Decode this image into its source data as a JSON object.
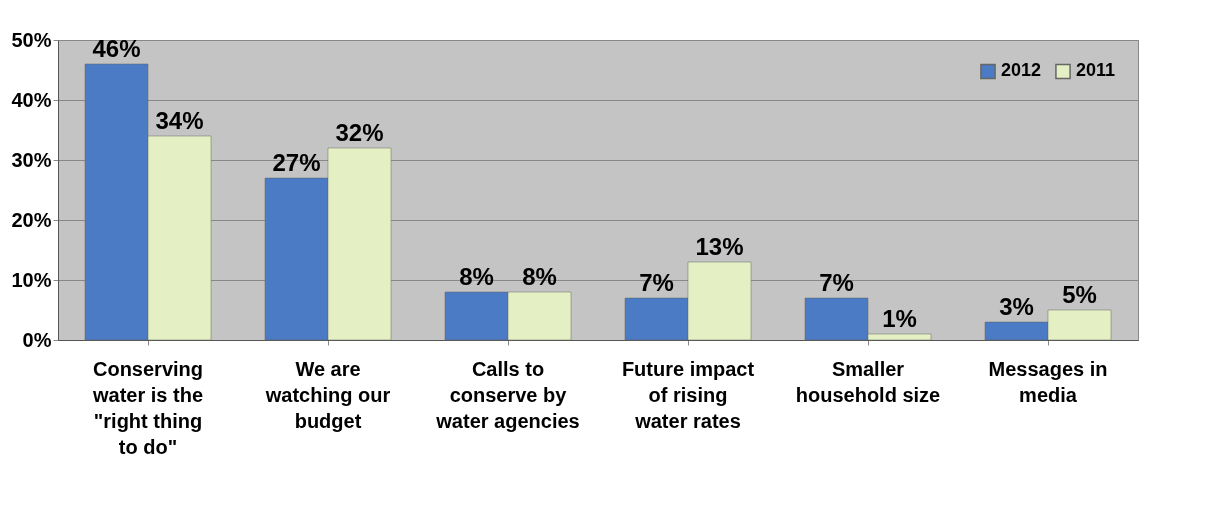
{
  "chart_data": {
    "type": "bar",
    "categories": [
      "Conserving water is the \"right thing to do\"",
      "We are watching our budget",
      "Calls to conserve by water agencies",
      "Future impact of rising water rates",
      "Smaller household size",
      "Messages in media"
    ],
    "series": [
      {
        "name": "2012",
        "color": "#4a7bc4",
        "values": [
          46,
          27,
          8,
          7,
          7,
          3
        ],
        "value_labels": [
          "46%",
          "27%",
          "8%",
          "7%",
          "7%",
          "3%"
        ]
      },
      {
        "name": "2011",
        "color": "#e4efc4",
        "values": [
          34,
          32,
          8,
          13,
          1,
          5
        ],
        "value_labels": [
          "34%",
          "32%",
          "8%",
          "13%",
          "1%",
          "5%"
        ]
      }
    ],
    "ylim": [
      0,
      50
    ],
    "yticks": [
      {
        "value": 0,
        "label": "0%"
      },
      {
        "value": 10,
        "label": "10%"
      },
      {
        "value": 20,
        "label": "20%"
      },
      {
        "value": 30,
        "label": "30%"
      },
      {
        "value": 40,
        "label": "40%"
      },
      {
        "value": 50,
        "label": "50%"
      }
    ],
    "grid": "y",
    "legend": "top right"
  }
}
